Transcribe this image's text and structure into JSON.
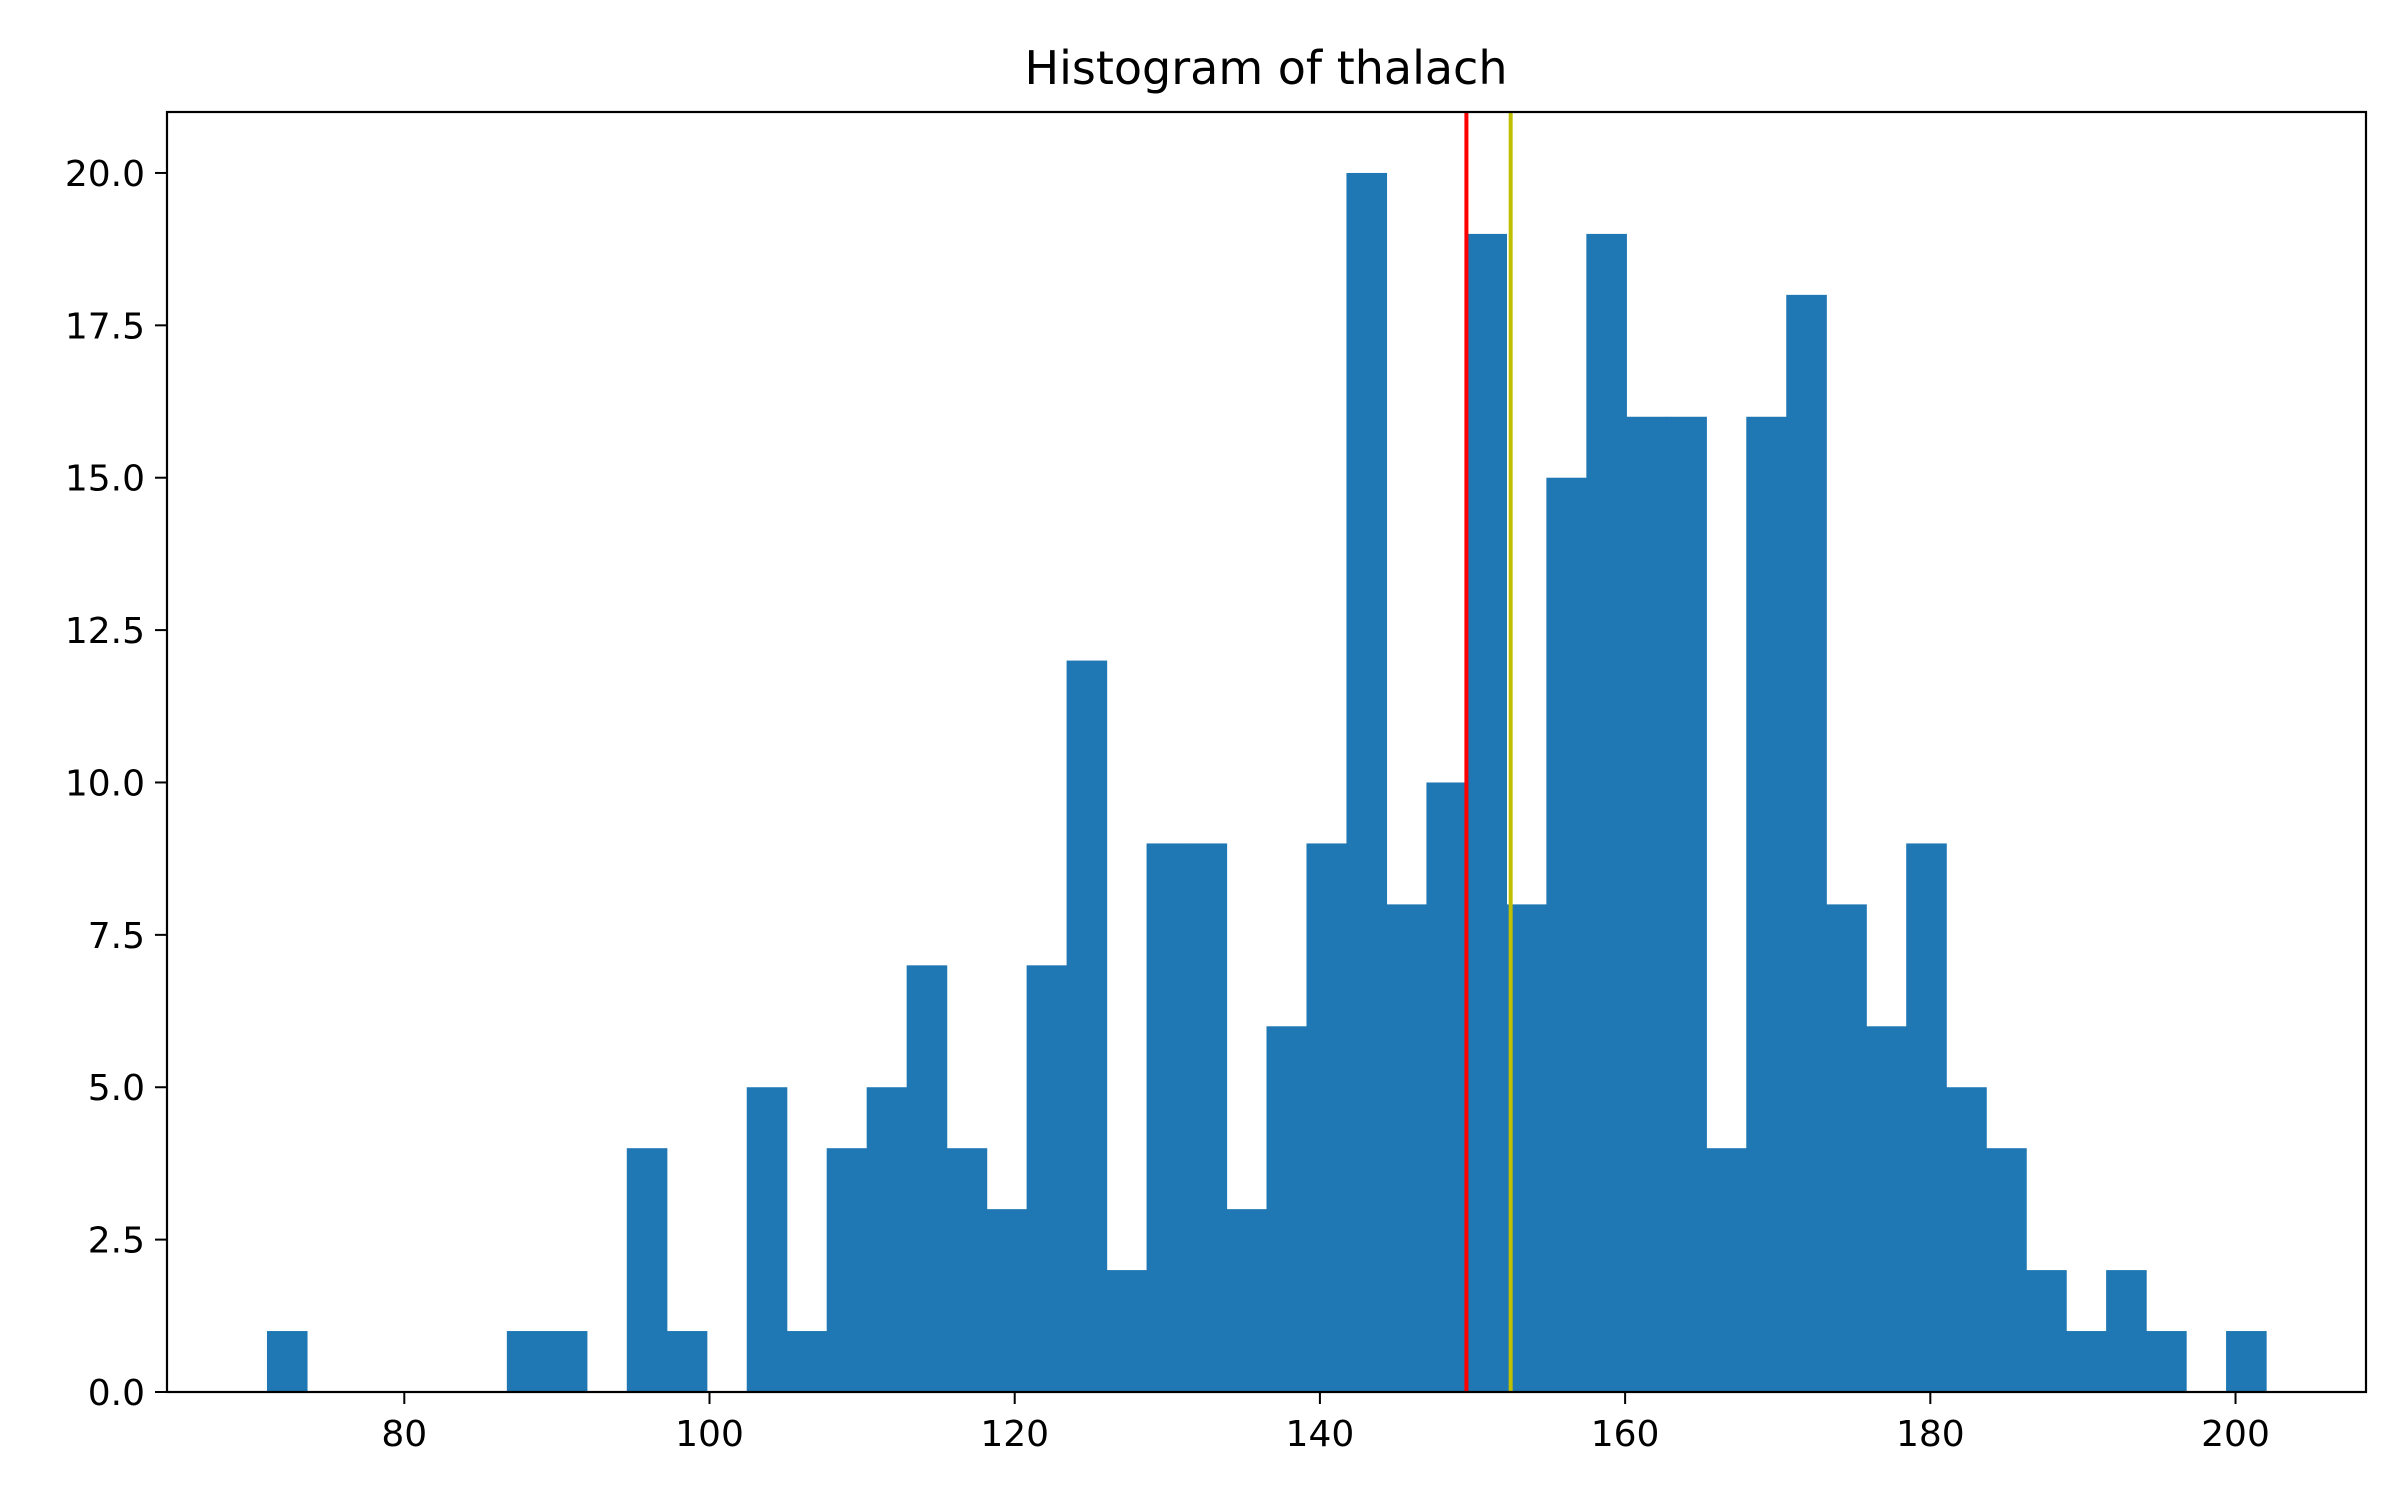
{
  "chart_data": {
    "type": "bar",
    "title": "Histogram of  thalach",
    "xlabel": "",
    "ylabel": "",
    "bin_edges": [
      71.0,
      73.62,
      76.24,
      78.86,
      81.48,
      84.1,
      86.72,
      89.34,
      91.96,
      94.58,
      97.2,
      99.82,
      102.44,
      105.06,
      107.68,
      110.3,
      112.92,
      115.54,
      118.16,
      120.78,
      123.4,
      126.02,
      128.64,
      131.26,
      133.88,
      136.5,
      139.12,
      141.74,
      144.36,
      146.98,
      149.6,
      152.22,
      154.84,
      157.46,
      160.08,
      162.7,
      165.32,
      167.94,
      170.56,
      173.18,
      175.8,
      178.42,
      181.04,
      183.66,
      186.28,
      188.9,
      191.52,
      194.14,
      196.76,
      199.38,
      202.0
    ],
    "values": [
      1,
      0,
      0,
      0,
      0,
      0,
      1,
      1,
      0,
      4,
      1,
      0,
      5,
      1,
      4,
      5,
      7,
      4,
      3,
      7,
      12,
      2,
      9,
      9,
      3,
      6,
      9,
      20,
      8,
      10,
      19,
      8,
      15,
      19,
      16,
      16,
      4,
      16,
      18,
      8,
      6,
      9,
      5,
      4,
      2,
      1,
      2,
      1,
      0,
      1
    ],
    "bar_color": "#1f77b4",
    "vlines": [
      {
        "x": 149.6,
        "color": "#ff0000"
      },
      {
        "x": 152.5,
        "color": "#bfbf00"
      }
    ],
    "xlim": [
      64.45,
      208.55
    ],
    "ylim": [
      0,
      21
    ],
    "xticks": [
      80,
      100,
      120,
      140,
      160,
      180,
      200
    ],
    "xtick_labels": [
      "80",
      "100",
      "120",
      "140",
      "160",
      "180",
      "200"
    ],
    "yticks": [
      0,
      2.5,
      5,
      7.5,
      10,
      12.5,
      15,
      17.5,
      20
    ],
    "ytick_labels": [
      "0.0",
      "2.5",
      "5.0",
      "7.5",
      "10.0",
      "12.5",
      "15.0",
      "17.5",
      "20.0"
    ],
    "grid": false,
    "legend": "none"
  }
}
